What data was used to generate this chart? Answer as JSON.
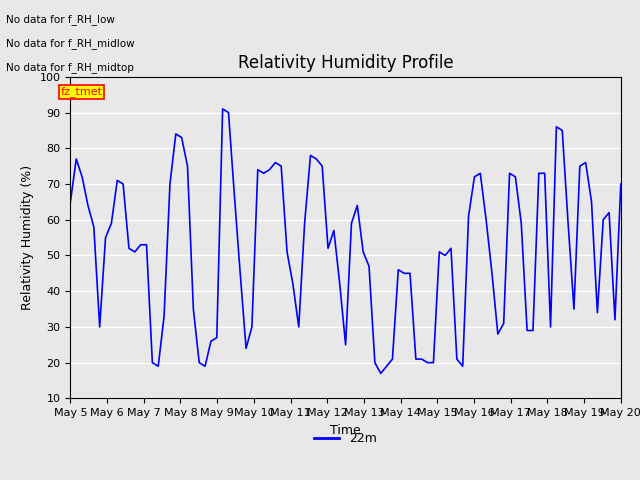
{
  "title": "Relativity Humidity Profile",
  "ylabel": "Relativity Humidity (%)",
  "xlabel": "Time",
  "legend_label": "22m",
  "legend_items": [
    "No data for f_RH_low",
    "No data for f_RH_midlow",
    "No data for f_RH_midtop",
    "fz_tmet"
  ],
  "ylim": [
    10,
    100
  ],
  "yticks": [
    10,
    20,
    30,
    40,
    50,
    60,
    70,
    80,
    90,
    100
  ],
  "xtick_labels": [
    "May 5",
    "May 6",
    "May 7",
    "May 8",
    "May 9",
    "May 10",
    "May 11",
    "May 12",
    "May 13",
    "May 14",
    "May 15",
    "May 16",
    "May 17",
    "May 18",
    "May 19",
    "May 20"
  ],
  "line_color": "#0000ff",
  "line_width": 1.2,
  "background_color": "#e8e8e8",
  "axes_bg_color": "#e8e8e8",
  "grid_color": "#ffffff",
  "title_fontsize": 12,
  "axis_fontsize": 9,
  "tick_fontsize": 8,
  "y_values": [
    65,
    77,
    72,
    64,
    58,
    30,
    55,
    59,
    71,
    70,
    52,
    51,
    53,
    53,
    20,
    19,
    33,
    70,
    84,
    83,
    75,
    35,
    20,
    19,
    26,
    27,
    91,
    90,
    67,
    45,
    24,
    30,
    74,
    73,
    74,
    76,
    75,
    51,
    42,
    30,
    59,
    78,
    77,
    75,
    52,
    57,
    42,
    25,
    59,
    64,
    51,
    47,
    20,
    17,
    19,
    21,
    46,
    45,
    45,
    21,
    21,
    20,
    20,
    51,
    50,
    52,
    21,
    19,
    61,
    72,
    73,
    60,
    45,
    28,
    31,
    73,
    72,
    59,
    29,
    29,
    73,
    73,
    30,
    86,
    85,
    59,
    35,
    75,
    76,
    65,
    34,
    60,
    62,
    32,
    70
  ]
}
